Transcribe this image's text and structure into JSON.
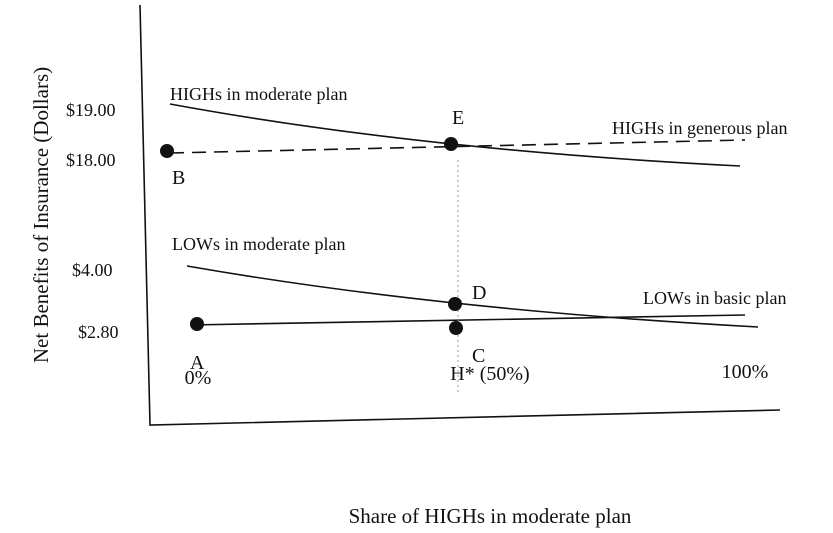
{
  "axes": {
    "y_label": "Net Benefits of Insurance (Dollars)",
    "x_label": "Share of HIGHs in moderate plan",
    "y_ticks": [
      "$19.00",
      "$18.00",
      "$4.00",
      "$2.80"
    ],
    "x_ticks": [
      "0%",
      "H* (50%)",
      "100%"
    ]
  },
  "curves": [
    "HIGHs in moderate plan",
    "HIGHs in generous plan",
    "LOWs in moderate plan",
    "LOWs in basic plan"
  ],
  "points": [
    "B",
    "E",
    "A",
    "D",
    "C"
  ]
}
